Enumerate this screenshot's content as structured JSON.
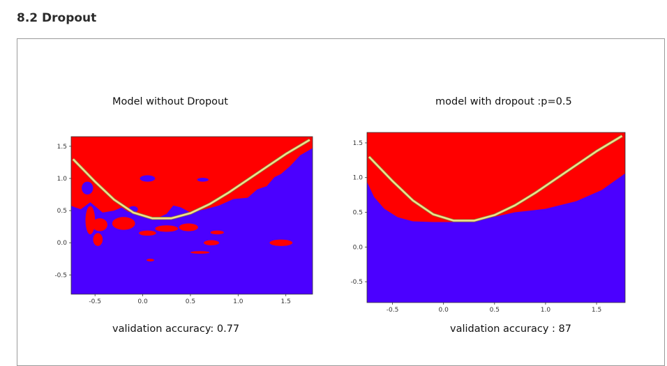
{
  "page": {
    "section_title": "8.2 Dropout"
  },
  "colors": {
    "class_0_region": "#ff0000",
    "class_1_region": "#4b00ff",
    "boundary": "#efe08a",
    "frame_border": "#9a9a9a"
  },
  "panels": [
    {
      "title": "Model without Dropout",
      "caption": "validation accuracy: 0.77"
    },
    {
      "title": "model with dropout :p=0.5",
      "caption": "validation accuracy : 87"
    }
  ],
  "chart_data": [
    {
      "type": "heatmap",
      "title": "Model without Dropout",
      "xlabel": "",
      "ylabel": "",
      "xlim": [
        -0.75,
        1.78
      ],
      "ylim": [
        -0.8,
        1.65
      ],
      "xticks": [
        "-0.5",
        "0.0",
        "0.5",
        "1.0",
        "1.5"
      ],
      "yticks": [
        "-0.5",
        "0.0",
        "0.5",
        "1.0",
        "1.5"
      ],
      "series": [
        {
          "curve": [
            [
              -0.73,
              1.3
            ],
            [
              -0.5,
              0.95
            ],
            [
              -0.3,
              0.67
            ],
            [
              -0.1,
              0.47
            ],
            [
              0.1,
              0.38
            ],
            [
              0.3,
              0.38
            ],
            [
              0.5,
              0.46
            ],
            [
              0.7,
              0.6
            ],
            [
              0.9,
              0.78
            ],
            [
              1.1,
              0.98
            ],
            [
              1.3,
              1.18
            ],
            [
              1.5,
              1.38
            ],
            [
              1.75,
              1.6
            ]
          ]
        }
      ],
      "grid": false,
      "validation_accuracy": "0.77"
    },
    {
      "type": "heatmap",
      "title": "model with dropout :p=0.5",
      "xlabel": "",
      "ylabel": "",
      "xlim": [
        -0.75,
        1.78
      ],
      "ylim": [
        -0.8,
        1.65
      ],
      "xticks": [
        "-0.5",
        "0.0",
        "0.5",
        "1.0",
        "1.5"
      ],
      "yticks": [
        "-0.5",
        "0.0",
        "0.5",
        "1.0",
        "1.5"
      ],
      "series": [
        {
          "curve": [
            [
              -0.73,
              1.3
            ],
            [
              -0.5,
              0.95
            ],
            [
              -0.3,
              0.67
            ],
            [
              -0.1,
              0.47
            ],
            [
              0.1,
              0.38
            ],
            [
              0.3,
              0.38
            ],
            [
              0.5,
              0.46
            ],
            [
              0.7,
              0.6
            ],
            [
              0.9,
              0.78
            ],
            [
              1.1,
              0.98
            ],
            [
              1.3,
              1.18
            ],
            [
              1.5,
              1.38
            ],
            [
              1.75,
              1.6
            ]
          ]
        }
      ],
      "grid": false,
      "validation_accuracy": "87"
    }
  ]
}
